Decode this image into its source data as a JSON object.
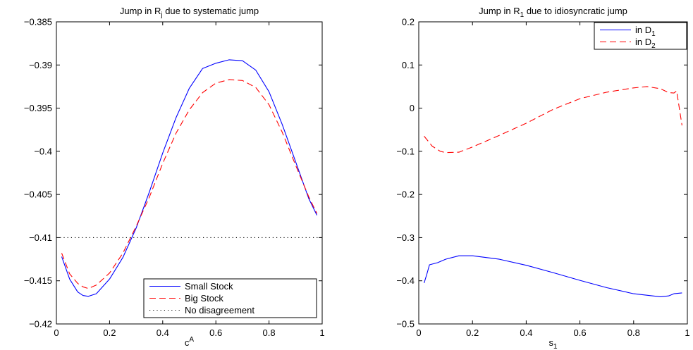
{
  "chart_data": [
    {
      "type": "line",
      "title": {
        "base": "Jump in R",
        "sub": "j",
        "rest": " due to systematic jump"
      },
      "xlabel": {
        "base": "c",
        "sup": "A"
      },
      "ylabel": "",
      "xlim": [
        0,
        1
      ],
      "ylim": [
        -0.42,
        -0.385
      ],
      "xticks": [
        0,
        0.2,
        0.4,
        0.6,
        0.8,
        1
      ],
      "xtick_labels": [
        "0",
        "0.2",
        "0.4",
        "0.6",
        "0.8",
        "1"
      ],
      "yticks": [
        -0.42,
        -0.415,
        -0.41,
        -0.405,
        -0.4,
        -0.395,
        -0.39,
        -0.385
      ],
      "ytick_labels": [
        "−0.42",
        "−0.415",
        "−0.41",
        "−0.405",
        "−0.4",
        "−0.395",
        "−0.39",
        "−0.385"
      ],
      "grid": false,
      "legend_position": "bottom-right",
      "series": [
        {
          "name": "Small Stock",
          "color": "#0000ff",
          "dash": "solid",
          "x": [
            0.02,
            0.05,
            0.08,
            0.1,
            0.12,
            0.15,
            0.2,
            0.25,
            0.3,
            0.35,
            0.4,
            0.45,
            0.5,
            0.55,
            0.6,
            0.65,
            0.7,
            0.75,
            0.8,
            0.85,
            0.9,
            0.95,
            0.98
          ],
          "y": [
            -0.4122,
            -0.4148,
            -0.4163,
            -0.4167,
            -0.4168,
            -0.4165,
            -0.4148,
            -0.4123,
            -0.4089,
            -0.4047,
            -0.4002,
            -0.3961,
            -0.3927,
            -0.3904,
            -0.3898,
            -0.3894,
            -0.3895,
            -0.3906,
            -0.3931,
            -0.3969,
            -0.4012,
            -0.4055,
            -0.4074
          ]
        },
        {
          "name": "Big Stock",
          "color": "#ff0000",
          "dash": "dashed",
          "x": [
            0.02,
            0.05,
            0.08,
            0.1,
            0.12,
            0.15,
            0.2,
            0.25,
            0.3,
            0.35,
            0.4,
            0.45,
            0.5,
            0.55,
            0.6,
            0.65,
            0.7,
            0.75,
            0.8,
            0.85,
            0.9,
            0.95,
            0.98
          ],
          "y": [
            -0.4118,
            -0.4142,
            -0.4153,
            -0.4157,
            -0.4159,
            -0.4155,
            -0.4141,
            -0.4118,
            -0.4087,
            -0.4053,
            -0.4014,
            -0.3979,
            -0.3952,
            -0.3932,
            -0.3921,
            -0.3917,
            -0.3918,
            -0.3926,
            -0.3946,
            -0.3978,
            -0.4016,
            -0.4053,
            -0.4072
          ]
        },
        {
          "name": "No disagreement",
          "color": "#000000",
          "dash": "dotted",
          "x": [
            0,
            1
          ],
          "y": [
            -0.41,
            -0.41
          ]
        }
      ]
    },
    {
      "type": "line",
      "title": {
        "base": "Jump in R",
        "sub": "1",
        "rest": " due to idiosyncratic jump"
      },
      "xlabel": {
        "base": "s",
        "sub": "1"
      },
      "ylabel": "",
      "xlim": [
        0,
        1
      ],
      "ylim": [
        -0.5,
        0.2
      ],
      "xticks": [
        0,
        0.2,
        0.4,
        0.6,
        0.8,
        1
      ],
      "xtick_labels": [
        "0",
        "0.2",
        "0.4",
        "0.6",
        "0.8",
        "1"
      ],
      "yticks": [
        -0.5,
        -0.4,
        -0.3,
        -0.2,
        -0.1,
        0,
        0.1,
        0.2
      ],
      "ytick_labels": [
        "−0.5",
        "−0.4",
        "−0.3",
        "−0.2",
        "−0.1",
        "0",
        "0.1",
        "0.2"
      ],
      "grid": false,
      "legend_position": "top-right",
      "series": [
        {
          "name": "in D",
          "name_sub": "1",
          "color": "#0000ff",
          "dash": "solid",
          "x": [
            0.02,
            0.03,
            0.04,
            0.07,
            0.1,
            0.15,
            0.2,
            0.3,
            0.4,
            0.5,
            0.6,
            0.7,
            0.8,
            0.9,
            0.93,
            0.95,
            0.98
          ],
          "y": [
            -0.405,
            -0.385,
            -0.363,
            -0.358,
            -0.35,
            -0.342,
            -0.342,
            -0.35,
            -0.364,
            -0.381,
            -0.399,
            -0.416,
            -0.43,
            -0.437,
            -0.435,
            -0.43,
            -0.428
          ]
        },
        {
          "name": "in D",
          "name_sub": "2",
          "color": "#ff0000",
          "dash": "dashed",
          "x": [
            0.02,
            0.05,
            0.08,
            0.1,
            0.15,
            0.2,
            0.3,
            0.4,
            0.5,
            0.6,
            0.7,
            0.8,
            0.85,
            0.9,
            0.93,
            0.95,
            0.96,
            0.98
          ],
          "y": [
            -0.065,
            -0.088,
            -0.1,
            -0.103,
            -0.102,
            -0.09,
            -0.063,
            -0.035,
            -0.003,
            0.022,
            0.037,
            0.047,
            0.05,
            0.045,
            0.036,
            0.035,
            0.04,
            -0.04
          ]
        }
      ]
    }
  ]
}
